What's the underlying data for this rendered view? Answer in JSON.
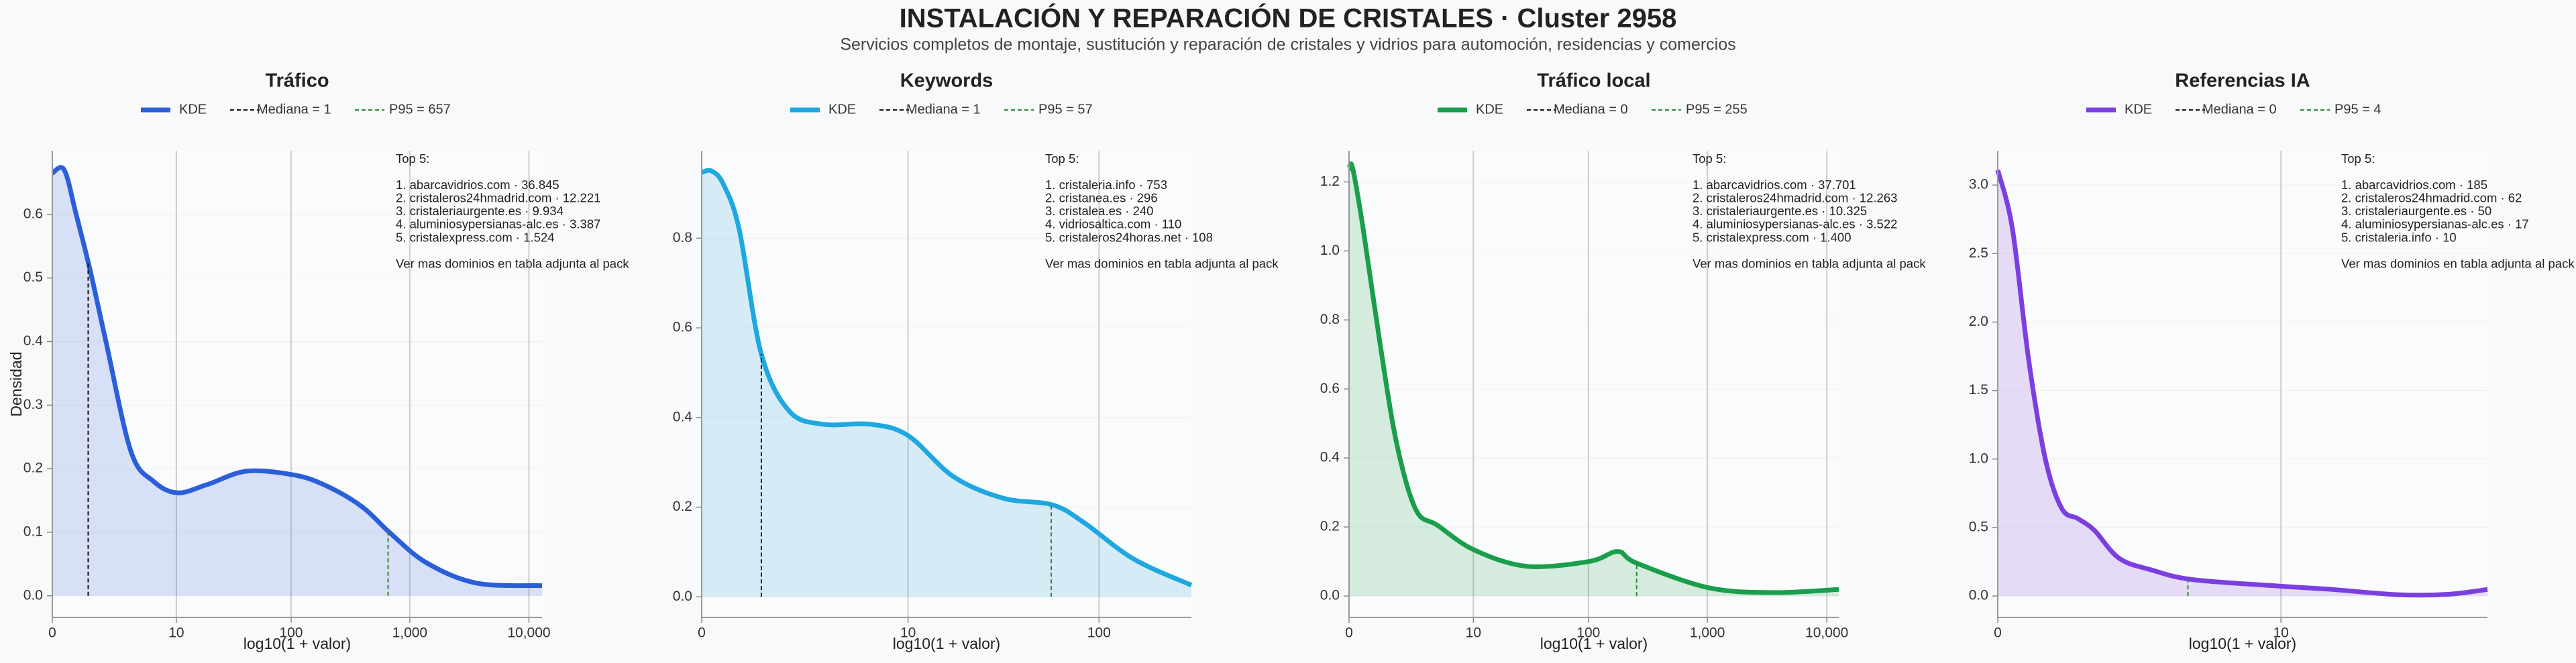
{
  "title": "INSTALACIÓN Y REPARACIÓN DE CRISTALES · Cluster 2958",
  "subtitle": "Servicios completos de montaje, sustitución y reparación de cristales y vidrios para automoción, residencias y comercios",
  "chart_data": [
    {
      "type": "area",
      "title": "Tráfico",
      "xlabel": "log10(1 + valor)",
      "ylabel": "Densidad",
      "grid": true,
      "xlim": [
        0,
        4.11
      ],
      "ylim": [
        -0.034,
        0.7
      ],
      "xticks": [
        0,
        {
          "value": 1.041,
          "label": "10"
        },
        {
          "value": 2.004,
          "label": "100"
        },
        {
          "value": 3.0,
          "label": "1,000"
        },
        {
          "value": 4.0,
          "label": "10,000"
        }
      ],
      "yticks": [
        {
          "value": 0,
          "label": "0.0"
        },
        0.1,
        0.2,
        0.3,
        0.4,
        0.5,
        0.6
      ],
      "x": [
        0,
        0.1,
        0.2,
        0.32,
        0.45,
        0.66,
        0.85,
        1.05,
        1.3,
        1.63,
        2.03,
        2.3,
        2.6,
        2.84,
        3.14,
        3.56,
        4.11
      ],
      "series": [
        {
          "name": "KDE",
          "color": "#2b5fd9",
          "values": [
            0.665,
            0.67,
            0.6,
            0.51,
            0.4,
            0.227,
            0.18,
            0.162,
            0.175,
            0.196,
            0.19,
            0.173,
            0.14,
            0.098,
            0.052,
            0.02,
            0.016
          ]
        }
      ],
      "vlines": [
        {
          "name": "Mediana = 1",
          "x": 0.301,
          "color": "#111111"
        },
        {
          "name": "P95 = 657",
          "x": 2.818,
          "color": "#2a8a2a"
        }
      ],
      "annotation": {
        "heading": "Top 5:",
        "items": [
          "1. abarcavidrios.com · 36.845",
          "2. cristaleros24hmadrid.com · 12.221",
          "3. cristaleriaurgente.es · 9.934",
          "4. aluminiosypersianas-alc.es · 3.387",
          "5. cristalexpress.com · 1.524"
        ],
        "footer": "Ver mas dominios en tabla adjunta al pack"
      }
    },
    {
      "type": "area",
      "title": "Keywords",
      "xlabel": "log10(1 + valor)",
      "grid": true,
      "xlim": [
        0,
        2.47
      ],
      "ylim": [
        -0.046,
        0.995
      ],
      "xticks": [
        0,
        {
          "value": 1.041,
          "label": "10"
        },
        {
          "value": 2.004,
          "label": "100"
        }
      ],
      "yticks": [
        {
          "value": 0,
          "label": "0.0"
        },
        0.2,
        0.4,
        0.6,
        0.8
      ],
      "x": [
        0,
        0.05,
        0.11,
        0.19,
        0.3,
        0.44,
        0.61,
        0.85,
        1.04,
        1.27,
        1.52,
        1.77,
        1.93,
        2.18,
        2.47
      ],
      "series": [
        {
          "name": "KDE",
          "color": "#1ea7e0",
          "values": [
            0.947,
            0.95,
            0.92,
            0.818,
            0.543,
            0.415,
            0.385,
            0.385,
            0.36,
            0.268,
            0.22,
            0.205,
            0.165,
            0.084,
            0.026
          ]
        }
      ],
      "vlines": [
        {
          "name": "Mediana = 1",
          "x": 0.301,
          "color": "#111111"
        },
        {
          "name": "P95 = 57",
          "x": 1.763,
          "color": "#2a8a2a"
        }
      ],
      "annotation": {
        "heading": "Top 5:",
        "items": [
          "1. cristaleria.info · 753",
          "2. cristanea.es · 296",
          "3. cristalea.es · 240",
          "4. vidriosaltica.com · 110",
          "5. cristaleros24horas.net · 108"
        ],
        "footer": "Ver mas dominios en tabla adjunta al pack"
      }
    },
    {
      "type": "area",
      "title": "Tráfico local",
      "xlabel": "log10(1 + valor)",
      "grid": true,
      "xlim": [
        0,
        4.1
      ],
      "ylim": [
        -0.062,
        1.29
      ],
      "xticks": [
        0,
        {
          "value": 1.041,
          "label": "10"
        },
        {
          "value": 2.004,
          "label": "100"
        },
        {
          "value": 3.0,
          "label": "1,000"
        },
        {
          "value": 4.0,
          "label": "10,000"
        }
      ],
      "yticks": [
        {
          "value": 0,
          "label": "0.0"
        },
        0.2,
        0.4,
        0.6,
        0.8,
        {
          "value": 1,
          "label": "1.0"
        },
        1.2
      ],
      "x": [
        0,
        0.03,
        0.12,
        0.26,
        0.4,
        0.56,
        0.74,
        1.05,
        1.49,
        2.01,
        2.25,
        2.41,
        3.01,
        3.55,
        4.1
      ],
      "series": [
        {
          "name": "KDE",
          "color": "#1a9e4b",
          "values": [
            1.238,
            1.24,
            1.06,
            0.73,
            0.44,
            0.25,
            0.205,
            0.133,
            0.086,
            0.1,
            0.129,
            0.095,
            0.024,
            0.01,
            0.019
          ]
        }
      ],
      "vlines": [
        {
          "name": "Mediana = 0",
          "x": 0,
          "color": "#111111"
        },
        {
          "name": "P95 = 255",
          "x": 2.408,
          "color": "#2a8a2a"
        }
      ],
      "annotation": {
        "heading": "Top 5:",
        "items": [
          "1. abarcavidrios.com · 37.701",
          "2. cristaleros24hmadrid.com · 12.263",
          "3. cristaleriaurgente.es · 10.325",
          "4. aluminiosypersianas-alc.es · 3.522",
          "5. cristalexpress.com · 1.400"
        ],
        "footer": "Ver mas dominios en tabla adjunta al pack"
      }
    },
    {
      "type": "area",
      "title": "Referencias IA",
      "xlabel": "log10(1 + valor)",
      "grid": true,
      "xlim": [
        0,
        1.8
      ],
      "ylim": [
        -0.156,
        3.25
      ],
      "xticks": [
        0,
        {
          "value": 1.041,
          "label": "10"
        }
      ],
      "yticks": [
        {
          "value": 0,
          "label": "0.0"
        },
        0.5,
        {
          "value": 1,
          "label": "1.0"
        },
        1.5,
        {
          "value": 2,
          "label": "2.0"
        },
        2.5,
        {
          "value": 3,
          "label": "3.0"
        }
      ],
      "x": [
        0,
        0.054,
        0.114,
        0.175,
        0.235,
        0.295,
        0.355,
        0.446,
        0.566,
        0.717,
        1.04,
        1.23,
        1.47,
        1.65,
        1.8
      ],
      "series": [
        {
          "name": "KDE",
          "color": "#7b3fe0",
          "values": [
            3.11,
            2.68,
            1.72,
            1.0,
            0.64,
            0.565,
            0.48,
            0.276,
            0.19,
            0.12,
            0.072,
            0.048,
            0.01,
            0.012,
            0.048
          ]
        }
      ],
      "vlines": [
        {
          "name": "Mediana = 0",
          "x": 0,
          "color": "#111111"
        },
        {
          "name": "P95 = 4",
          "x": 0.699,
          "color": "#2a8a2a"
        }
      ],
      "annotation": {
        "heading": "Top 5:",
        "items": [
          "1. abarcavidrios.com · 185",
          "2. cristaleros24hmadrid.com · 62",
          "3. cristaleriaurgente.es · 50",
          "4. aluminiosypersianas-alc.es · 17",
          "5. cristaleria.info · 10"
        ],
        "footer": "Ver mas dominios en tabla adjunta al pack"
      }
    }
  ]
}
